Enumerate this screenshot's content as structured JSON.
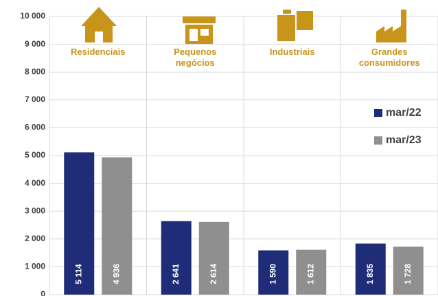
{
  "chart_data": {
    "type": "bar",
    "categories": [
      "Residenciais",
      "Pequenos negócios",
      "Industriais",
      "Grandes consumidores"
    ],
    "series": [
      {
        "name": "mar/22",
        "color": "#1f2d78",
        "values": [
          5114,
          2641,
          1590,
          1835
        ],
        "value_labels": [
          "5 114",
          "2 641",
          "1 590",
          "1 835"
        ]
      },
      {
        "name": "mar/23",
        "color": "#8f8f8f",
        "values": [
          4936,
          2614,
          1612,
          1728
        ],
        "value_labels": [
          "4 936",
          "2 614",
          "1 612",
          "1 728"
        ]
      }
    ],
    "ylim": [
      0,
      10000
    ],
    "yticks": [
      0,
      {
        "value": 1000,
        "label": "1 000"
      },
      {
        "value": 2000,
        "label": "2 000"
      },
      {
        "value": 3000,
        "label": "3 000"
      },
      {
        "value": 4000,
        "label": "4 000"
      },
      {
        "value": 5000,
        "label": "5 000"
      },
      {
        "value": 6000,
        "label": "6 000"
      },
      {
        "value": 7000,
        "label": "7 000"
      },
      {
        "value": 8000,
        "label": "8 000"
      },
      {
        "value": 9000,
        "label": "9 000"
      },
      {
        "value": 10000,
        "label": "10 000"
      }
    ],
    "grid": true,
    "legend": "right",
    "category_color": "#c8941a"
  }
}
